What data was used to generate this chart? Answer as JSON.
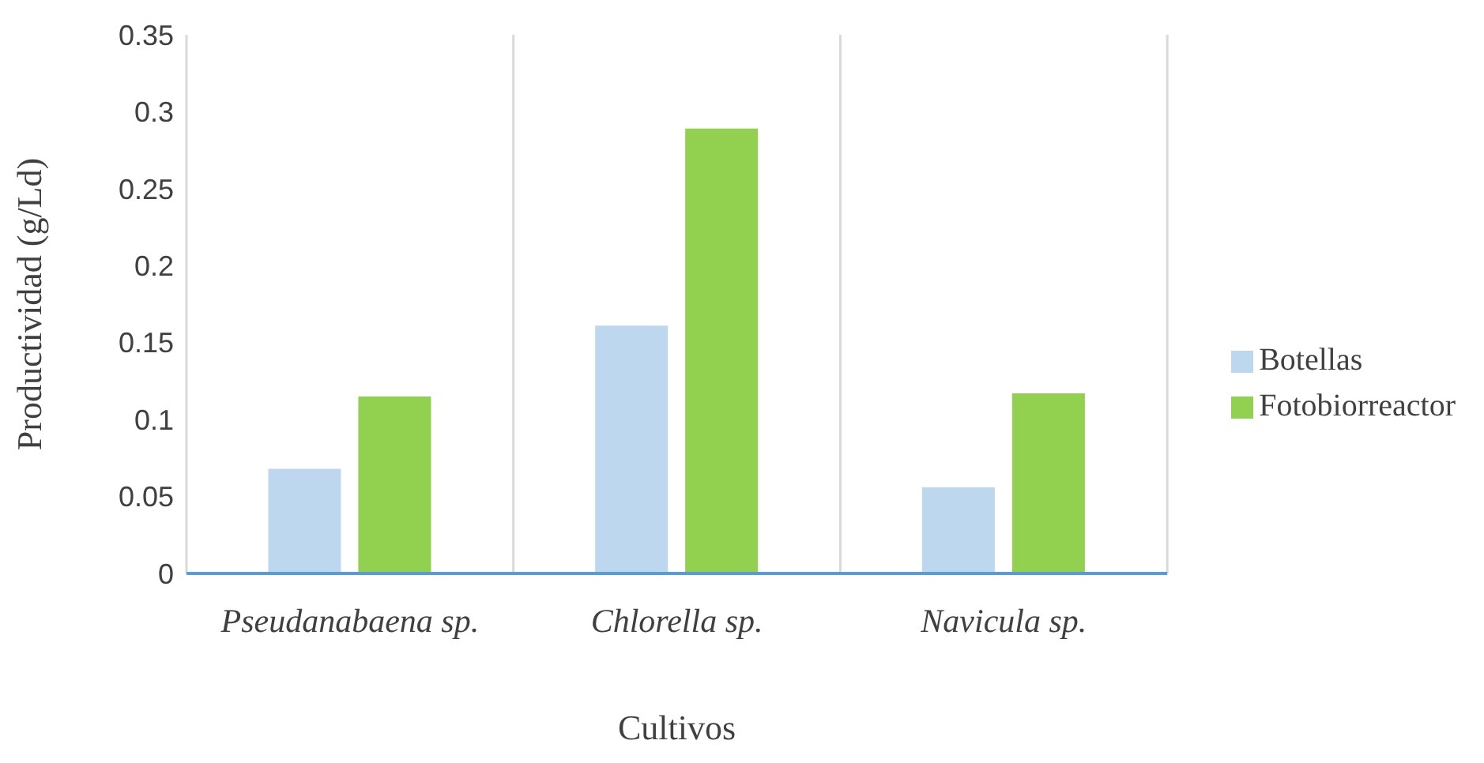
{
  "chart_data": {
    "type": "bar",
    "xlabel": "Cultivos",
    "ylabel": "Productividad (g/Ld)",
    "categories": [
      "Pseudanabaena sp.",
      "Chlorella sp.",
      "Navicula sp."
    ],
    "series": [
      {
        "name": "Botellas",
        "color": "#bdd7ee",
        "values": [
          0.068,
          0.161,
          0.056
        ]
      },
      {
        "name": "Fotobiorreactor",
        "color": "#92d050",
        "values": [
          0.115,
          0.289,
          0.117
        ]
      }
    ],
    "ylim": [
      0,
      0.35
    ],
    "yticks": [
      0,
      0.05,
      0.1,
      0.15,
      0.2,
      0.25,
      0.3,
      0.35
    ],
    "grid": "x",
    "legend": "right"
  }
}
